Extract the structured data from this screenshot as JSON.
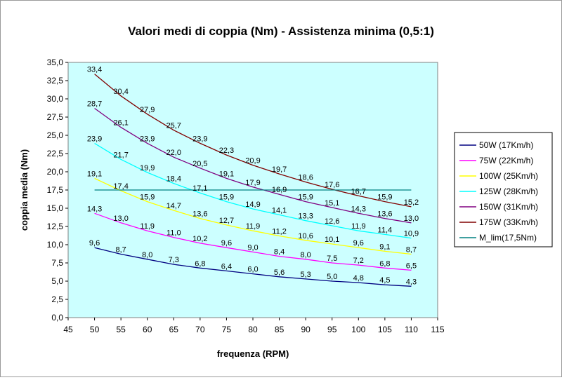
{
  "chart_data": {
    "type": "line",
    "title": "Valori medi di coppia (Nm) - Assistenza minima (0,5:1)",
    "xlabel": "frequenza (RPM)",
    "ylabel": "coppia media (Nm)",
    "xlim": [
      45,
      115
    ],
    "ylim": [
      0,
      35
    ],
    "x_ticks": [
      "45",
      "50",
      "55",
      "60",
      "65",
      "70",
      "75",
      "80",
      "85",
      "90",
      "95",
      "100",
      "105",
      "110",
      "115"
    ],
    "y_ticks": [
      "0,0",
      "2,5",
      "5,0",
      "7,5",
      "10,0",
      "12,5",
      "15,0",
      "17,5",
      "20,0",
      "22,5",
      "25,0",
      "27,5",
      "30,0",
      "32,5",
      "35,0"
    ],
    "plot_background": "#ccffff",
    "legend_position": "right",
    "x": [
      50,
      55,
      60,
      65,
      70,
      75,
      80,
      85,
      90,
      95,
      100,
      105,
      110
    ],
    "series": [
      {
        "name": "50W (17Km/h)",
        "color": "#000080",
        "values": [
          9.6,
          8.7,
          8.0,
          7.3,
          6.8,
          6.4,
          6.0,
          5.6,
          5.3,
          5.0,
          4.8,
          4.5,
          4.3
        ],
        "labels": [
          "9,6",
          "8,7",
          "8,0",
          "7,3",
          "6,8",
          "6,4",
          "6,0",
          "5,6",
          "5,3",
          "5,0",
          "4,8",
          "4,5",
          "4,3"
        ]
      },
      {
        "name": "75W (22Km/h)",
        "color": "#ff00ff",
        "values": [
          14.3,
          13.0,
          11.9,
          11.0,
          10.2,
          9.6,
          9.0,
          8.4,
          8.0,
          7.5,
          7.2,
          6.8,
          6.5
        ],
        "labels": [
          "14,3",
          "13,0",
          "11,9",
          "11,0",
          "10,2",
          "9,6",
          "9,0",
          "8,4",
          "8,0",
          "7,5",
          "7,2",
          "6,8",
          "6,5"
        ]
      },
      {
        "name": "100W (25Km/h)",
        "color": "#ffff00",
        "values": [
          19.1,
          17.4,
          15.9,
          14.7,
          13.6,
          12.7,
          11.9,
          11.2,
          10.6,
          10.1,
          9.6,
          9.1,
          8.7
        ],
        "labels": [
          "19,1",
          "17,4",
          "15,9",
          "14,7",
          "13,6",
          "12,7",
          "11,9",
          "11,2",
          "10,6",
          "10,1",
          "9,6",
          "9,1",
          "8,7"
        ]
      },
      {
        "name": "125W (28Km/h)",
        "color": "#00ffff",
        "values": [
          23.9,
          21.7,
          19.9,
          18.4,
          17.1,
          15.9,
          14.9,
          14.1,
          13.3,
          12.6,
          11.9,
          11.4,
          10.9
        ],
        "labels": [
          "23,9",
          "21,7",
          "19,9",
          "18,4",
          "17,1",
          "15,9",
          "14,9",
          "14,1",
          "13,3",
          "12,6",
          "11,9",
          "11,4",
          "10,9"
        ]
      },
      {
        "name": "150W (31Km/h)",
        "color": "#800080",
        "values": [
          28.7,
          26.1,
          23.9,
          22.0,
          20.5,
          19.1,
          17.9,
          16.9,
          15.9,
          15.1,
          14.3,
          13.6,
          13.0
        ],
        "labels": [
          "28,7",
          "26,1",
          "23,9",
          "22,0",
          "20,5",
          "19,1",
          "17,9",
          "16,9",
          "15,9",
          "15,1",
          "14,3",
          "13,6",
          "13,0"
        ]
      },
      {
        "name": "175W (33Km/h)",
        "color": "#800000",
        "values": [
          33.4,
          30.4,
          27.9,
          25.7,
          23.9,
          22.3,
          20.9,
          19.7,
          18.6,
          17.6,
          16.7,
          15.9,
          15.2
        ],
        "labels": [
          "33,4",
          "30,4",
          "27,9",
          "25,7",
          "23,9",
          "22,3",
          "20,9",
          "19,7",
          "18,6",
          "17,6",
          "16,7",
          "15,9",
          "15,2"
        ]
      },
      {
        "name": "M_lim(17,5Nm)",
        "color": "#008080",
        "values": [
          17.5,
          17.5,
          17.5,
          17.5,
          17.5,
          17.5,
          17.5,
          17.5,
          17.5,
          17.5,
          17.5,
          17.5,
          17.5
        ],
        "labels": []
      }
    ]
  }
}
